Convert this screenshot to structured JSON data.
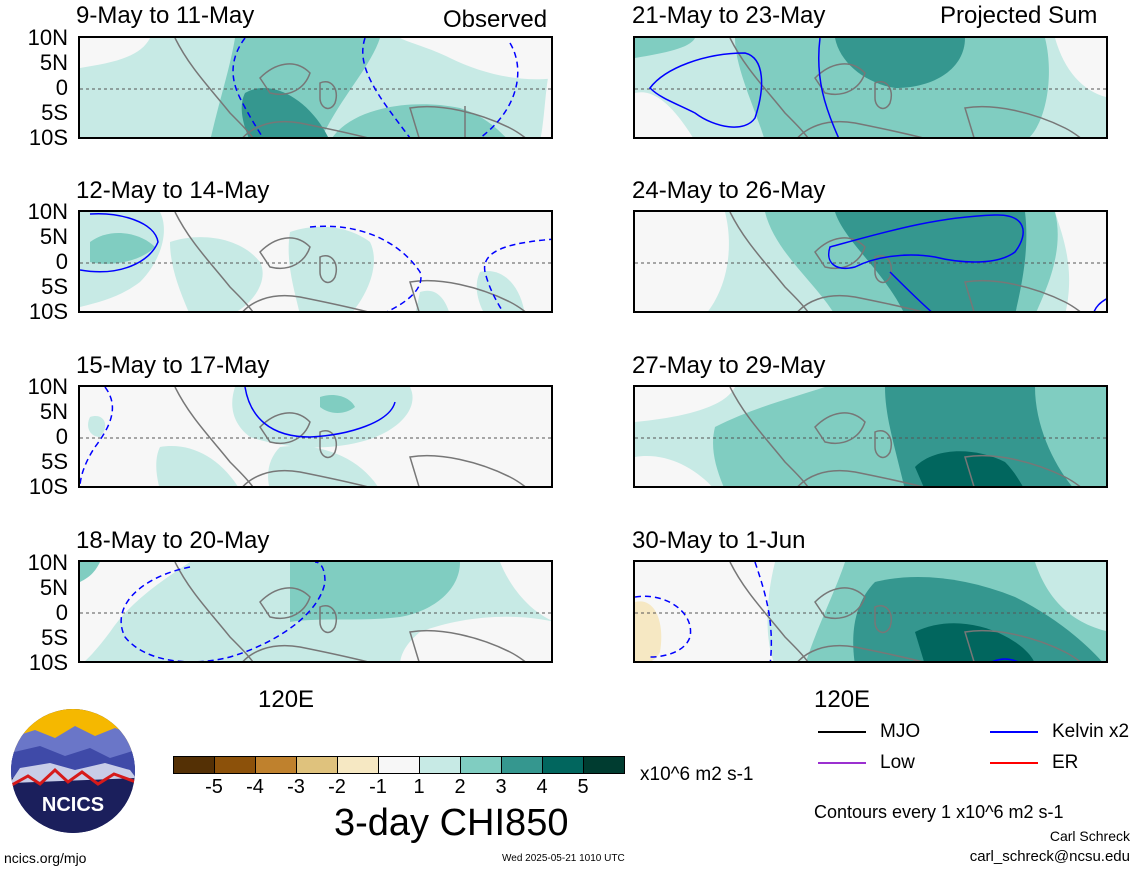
{
  "header": {
    "observed_label": "Observed",
    "projected_label": "Projected Sum"
  },
  "panels": [
    {
      "title": "9-May to 11-May"
    },
    {
      "title": "12-May to 14-May"
    },
    {
      "title": "15-May to 17-May"
    },
    {
      "title": "18-May to 20-May"
    },
    {
      "title": "21-May to 23-May"
    },
    {
      "title": "24-May to 26-May"
    },
    {
      "title": "27-May to 29-May"
    },
    {
      "title": "30-May to 1-Jun"
    }
  ],
  "lat_labels": [
    "10N",
    "5N",
    "0",
    "5S",
    "10S"
  ],
  "lon_label": "120E",
  "colorbar": {
    "ticks": [
      "-5",
      "-4",
      "-3",
      "-2",
      "-1",
      "1",
      "2",
      "3",
      "4",
      "5"
    ],
    "colors": [
      "#543005",
      "#8c510a",
      "#bf812d",
      "#dfc27d",
      "#f6e8c3",
      "#f7f7f7",
      "#c7eae5",
      "#80cdc1",
      "#35978f",
      "#01665e",
      "#003c30"
    ],
    "units": "x10^6 m2 s-1",
    "title": "3-day CHI850"
  },
  "legend": {
    "mjo": {
      "label": "MJO",
      "color": "#000000"
    },
    "low": {
      "label": "Low",
      "color": "#9b30d0"
    },
    "kelvin": {
      "label": "Kelvin x2",
      "color": "#0000ff"
    },
    "er": {
      "label": "ER",
      "color": "#ff0000"
    }
  },
  "contour_note": "Contours every 1 x10^6 m2 s-1",
  "credits": {
    "author": "Carl Schreck",
    "email": "carl_schreck@ncsu.edu",
    "site": "ncics.org/mjo",
    "timestamp": "Wed 2025-05-21 1010 UTC",
    "logo_text": "NCICS"
  }
}
